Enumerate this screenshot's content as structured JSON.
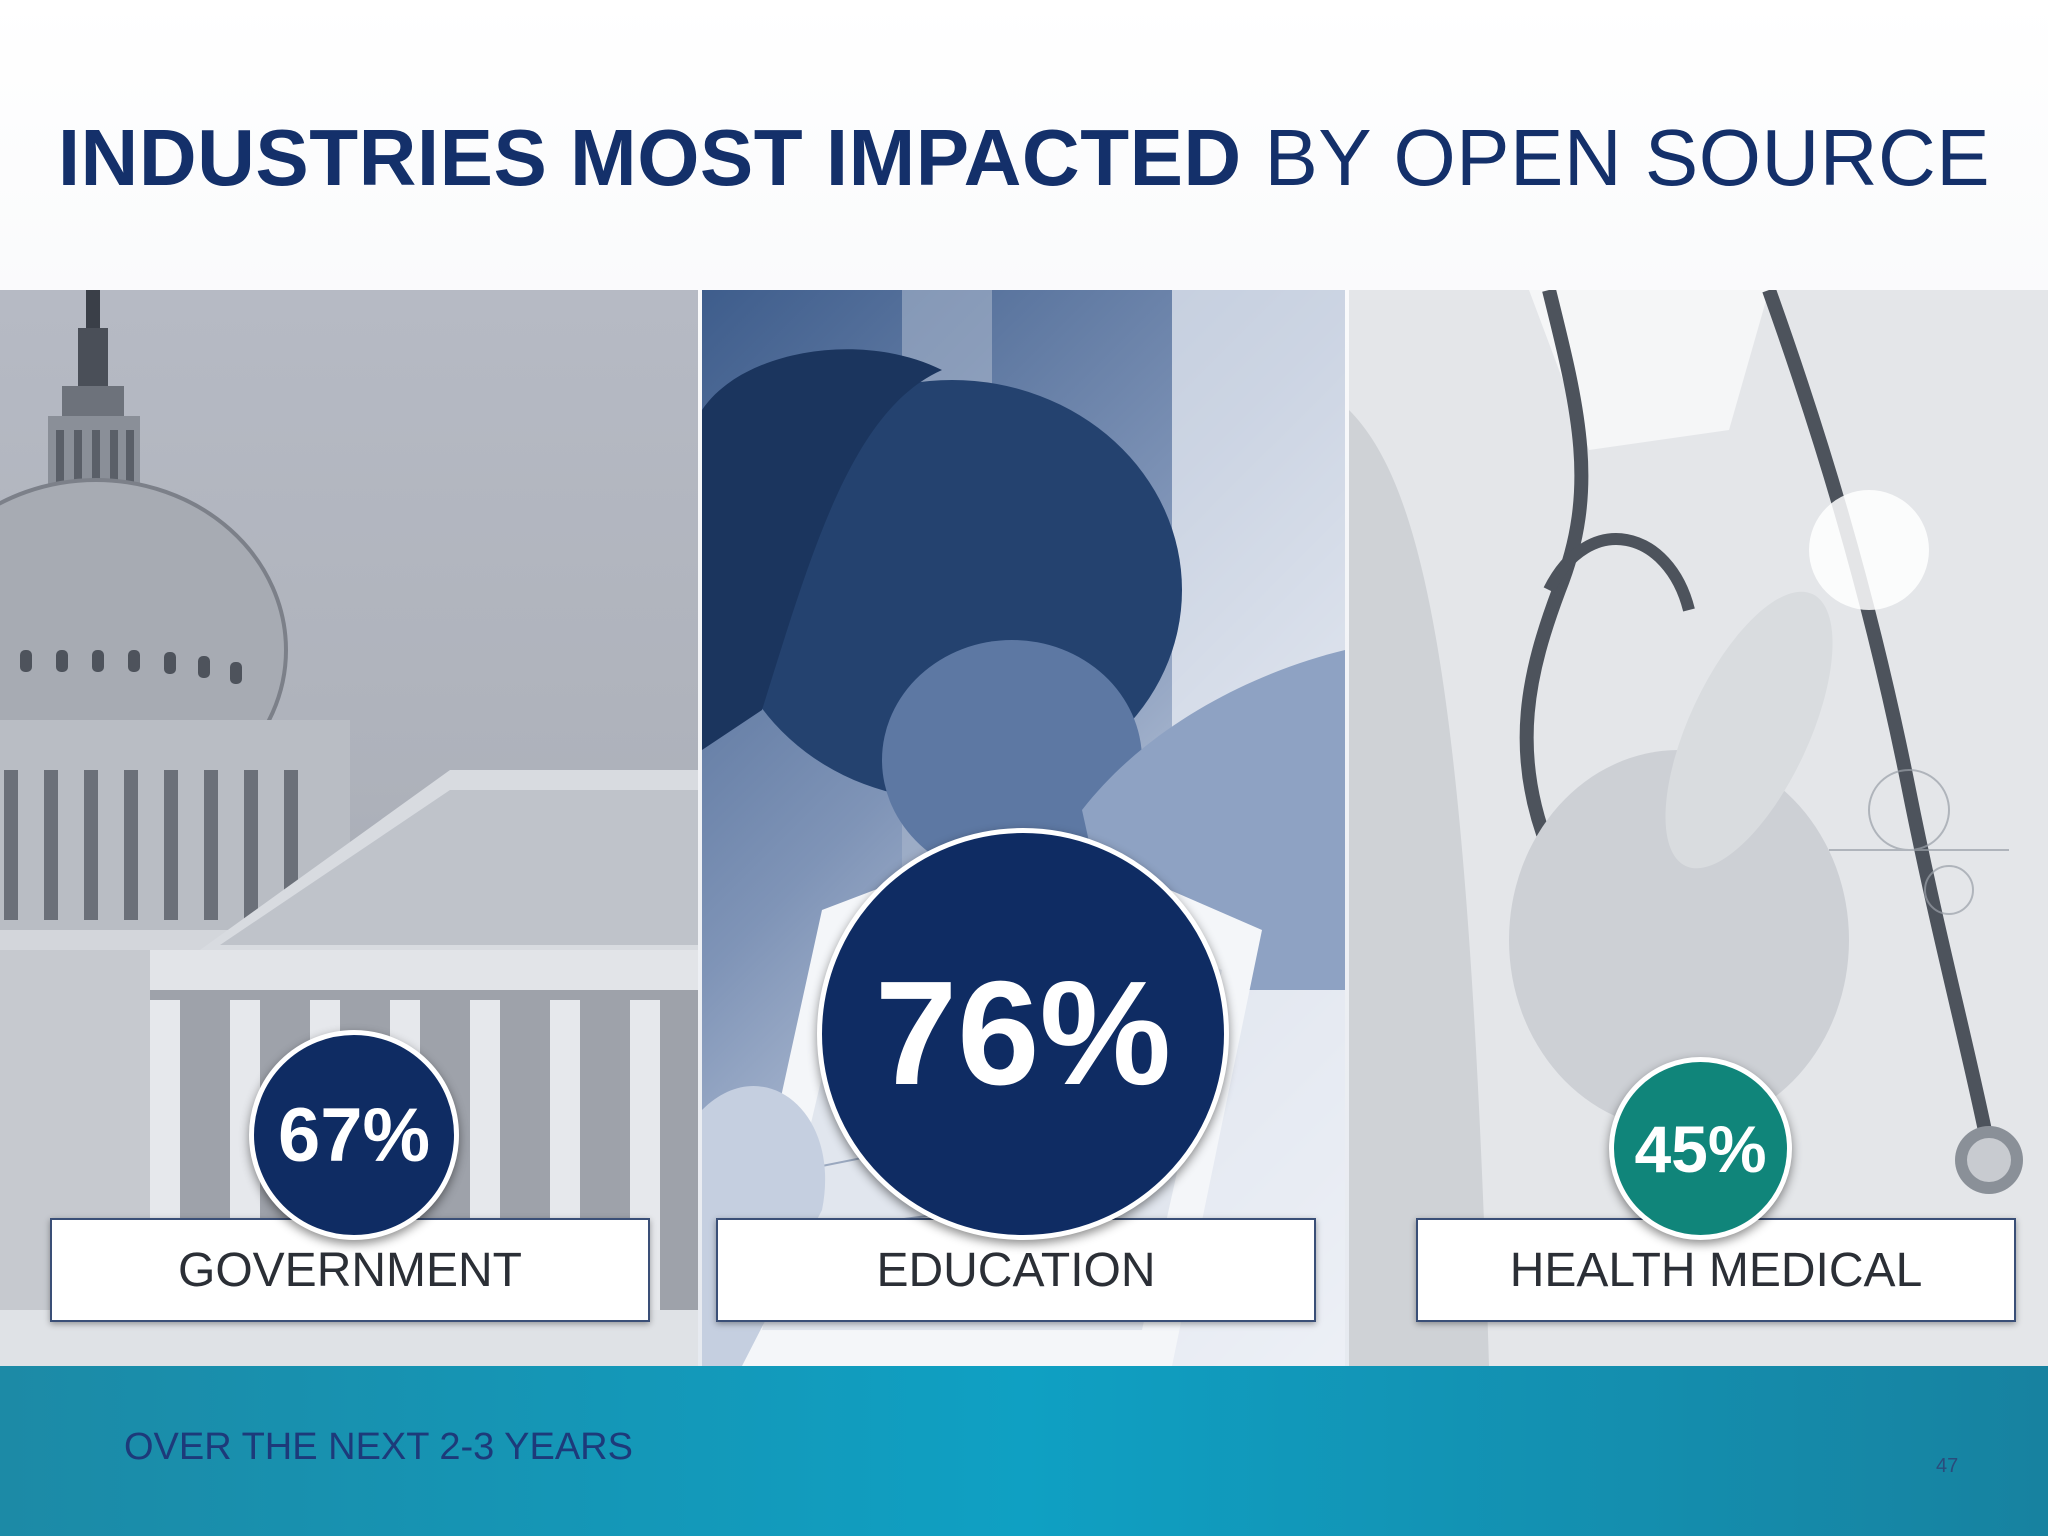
{
  "title": {
    "bold": "INDUSTRIES MOST IMPACTED",
    "regular": "BY OPEN SOURCE"
  },
  "footnote": "OVER THE NEXT 2-3 YEARS",
  "page_number": "47",
  "colors": {
    "navy": "#0f2c63",
    "teal": "#10857a",
    "bar": "#0fa0c3"
  },
  "chart_data": {
    "type": "bar",
    "categories": [
      "GOVERNMENT",
      "EDUCATION",
      "HEALTH MEDICAL"
    ],
    "values": [
      67,
      76,
      45
    ],
    "value_labels": [
      "67%",
      "76%",
      "45%"
    ],
    "unit": "%",
    "title": "INDUSTRIES MOST IMPACTED BY OPEN SOURCE"
  }
}
